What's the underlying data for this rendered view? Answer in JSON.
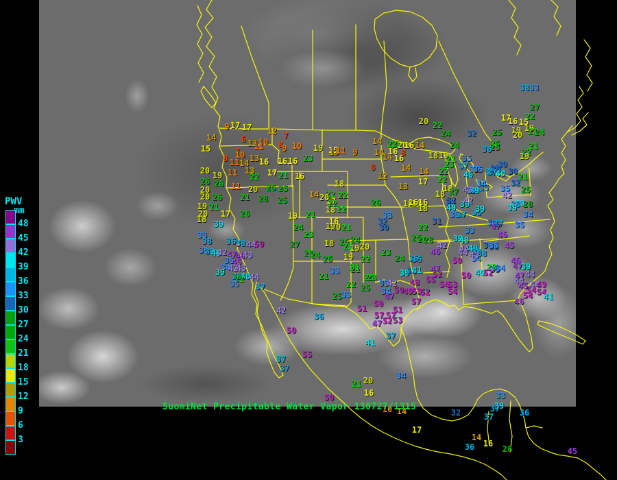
{
  "header": {
    "caption": "SuomiNet Precipitable Water Vapor 130727/1315",
    "caption_color": "#00e53c"
  },
  "legend": {
    "title": "PWV",
    "unit": "mm",
    "label_color": "#00e5ee",
    "labels": [
      "48",
      "45",
      "42",
      "39",
      "36",
      "33",
      "30",
      "27",
      "24",
      "21",
      "18",
      "15",
      "12",
      "9",
      "6",
      "3"
    ],
    "box_colors": [
      "#8B008B",
      "#9932CC",
      "#9370DB",
      "#00E5EE",
      "#00B4E8",
      "#1E90FF",
      "#1C64B8",
      "#0AA00A",
      "#00A800",
      "#12C112",
      "#B8D400",
      "#E8E800",
      "#B89B00",
      "#E88400",
      "#E85300",
      "#D31010",
      "#8B0000"
    ]
  },
  "map": {
    "border_color": "#ffff00"
  },
  "value_color_scale": [
    {
      "min": 48,
      "color": "#BB1FBB"
    },
    {
      "min": 45,
      "color": "#A43BE0"
    },
    {
      "min": 42,
      "color": "#9B7FE8"
    },
    {
      "min": 39,
      "color": "#00E5EE"
    },
    {
      "min": 36,
      "color": "#00AEE8"
    },
    {
      "min": 33,
      "color": "#2E8FFF"
    },
    {
      "min": 30,
      "color": "#1E6CD0"
    },
    {
      "min": 27,
      "color": "#0CA80C"
    },
    {
      "min": 24,
      "color": "#00BE00"
    },
    {
      "min": 21,
      "color": "#00D800"
    },
    {
      "min": 18,
      "color": "#D2DE00"
    },
    {
      "min": 15,
      "color": "#EDED00"
    },
    {
      "min": 12,
      "color": "#D49A00"
    },
    {
      "min": 9,
      "color": "#F07800"
    },
    {
      "min": 6,
      "color": "#F04800"
    },
    {
      "min": 0,
      "color": "#DC1414"
    }
  ],
  "stations": [
    [
      331,
      185,
      9
    ],
    [
      343,
      183,
      17
    ],
    [
      360,
      186,
      17
    ],
    [
      397,
      191,
      12
    ],
    [
      308,
      201,
      14
    ],
    [
      355,
      203,
      6
    ],
    [
      417,
      198,
      7
    ],
    [
      300,
      217,
      15
    ],
    [
      368,
      209,
      13
    ],
    [
      384,
      207,
      10
    ],
    [
      377,
      213,
      11
    ],
    [
      409,
      211,
      8
    ],
    [
      415,
      216,
      9
    ],
    [
      433,
      213,
      10
    ],
    [
      464,
      216,
      19
    ],
    [
      486,
      219,
      15
    ],
    [
      346,
      221,
      7
    ],
    [
      350,
      226,
      10
    ],
    [
      329,
      231,
      8
    ],
    [
      371,
      231,
      13
    ],
    [
      342,
      237,
      11
    ],
    [
      356,
      238,
      14
    ],
    [
      385,
      236,
      16
    ],
    [
      412,
      235,
      16
    ],
    [
      427,
      235,
      16
    ],
    [
      449,
      231,
      23
    ],
    [
      299,
      249,
      20
    ],
    [
      317,
      256,
      19
    ],
    [
      339,
      252,
      11
    ],
    [
      364,
      249,
      13
    ],
    [
      397,
      252,
      17
    ],
    [
      371,
      258,
      22
    ],
    [
      413,
      256,
      21
    ],
    [
      437,
      257,
      16
    ],
    [
      299,
      265,
      26
    ],
    [
      319,
      268,
      26
    ],
    [
      299,
      277,
      20
    ],
    [
      344,
      272,
      11
    ],
    [
      369,
      276,
      20
    ],
    [
      395,
      274,
      25
    ],
    [
      413,
      275,
      25
    ],
    [
      299,
      287,
      20
    ],
    [
      317,
      288,
      26
    ],
    [
      357,
      288,
      21
    ],
    [
      384,
      290,
      28
    ],
    [
      412,
      292,
      25
    ],
    [
      295,
      301,
      19
    ],
    [
      312,
      302,
      21
    ],
    [
      296,
      312,
      20
    ],
    [
      329,
      312,
      17
    ],
    [
      357,
      312,
      26
    ],
    [
      294,
      320,
      18
    ],
    [
      319,
      327,
      39
    ],
    [
      295,
      343,
      33
    ],
    [
      302,
      352,
      38
    ],
    [
      337,
      352,
      36
    ],
    [
      351,
      355,
      38
    ],
    [
      366,
      357,
      44
    ],
    [
      378,
      356,
      50
    ],
    [
      297,
      365,
      35
    ],
    [
      306,
      367,
      38
    ],
    [
      315,
      369,
      40
    ],
    [
      324,
      368,
      42
    ],
    [
      338,
      371,
      47
    ],
    [
      350,
      373,
      46
    ],
    [
      361,
      372,
      43
    ],
    [
      334,
      380,
      35
    ],
    [
      345,
      382,
      45
    ],
    [
      329,
      390,
      34
    ],
    [
      340,
      391,
      42
    ],
    [
      352,
      391,
      43
    ],
    [
      321,
      397,
      39
    ],
    [
      345,
      403,
      38
    ],
    [
      358,
      403,
      40
    ],
    [
      371,
      404,
      44
    ],
    [
      349,
      407,
      22
    ],
    [
      342,
      414,
      35
    ],
    [
      380,
      418,
      37
    ],
    [
      458,
      284,
      14
    ],
    [
      482,
      283,
      22
    ],
    [
      483,
      293,
      17
    ],
    [
      427,
      315,
      19
    ],
    [
      453,
      313,
      21
    ],
    [
      482,
      306,
      18
    ],
    [
      498,
      305,
      22
    ],
    [
      487,
      323,
      16
    ],
    [
      490,
      331,
      20
    ],
    [
      505,
      332,
      21
    ],
    [
      482,
      330,
      19
    ],
    [
      548,
      296,
      26
    ],
    [
      565,
      314,
      33
    ],
    [
      558,
      323,
      32
    ],
    [
      560,
      332,
      30
    ],
    [
      435,
      332,
      24
    ],
    [
      450,
      342,
      23
    ],
    [
      430,
      357,
      27
    ],
    [
      480,
      355,
      18
    ],
    [
      502,
      353,
      25
    ],
    [
      518,
      350,
      24
    ],
    [
      507,
      360,
      21
    ],
    [
      517,
      362,
      19
    ],
    [
      532,
      360,
      20
    ],
    [
      508,
      375,
      19
    ],
    [
      450,
      370,
      25
    ],
    [
      460,
      372,
      24
    ],
    [
      478,
      378,
      25
    ],
    [
      533,
      378,
      22
    ],
    [
      563,
      368,
      23
    ],
    [
      583,
      377,
      24
    ],
    [
      488,
      395,
      33
    ],
    [
      472,
      403,
      21
    ],
    [
      517,
      390,
      21
    ],
    [
      538,
      405,
      23
    ],
    [
      608,
      378,
      36
    ],
    [
      487,
      222,
      13
    ],
    [
      497,
      220,
      11
    ],
    [
      518,
      222,
      9
    ],
    [
      550,
      206,
      14
    ],
    [
      553,
      222,
      14
    ],
    [
      565,
      229,
      14
    ],
    [
      582,
      231,
      16
    ],
    [
      578,
      211,
      22
    ],
    [
      544,
      244,
      8
    ],
    [
      558,
      257,
      12
    ],
    [
      495,
      268,
      18
    ],
    [
      500,
      285,
      22
    ],
    [
      485,
      297,
      22
    ],
    [
      473,
      288,
      20
    ],
    [
      592,
      245,
      14
    ],
    [
      588,
      272,
      13
    ],
    [
      618,
      177,
      20
    ],
    [
      638,
      183,
      22
    ],
    [
      650,
      195,
      24
    ],
    [
      688,
      195,
      32
    ],
    [
      663,
      212,
      24
    ],
    [
      722,
      210,
      25
    ],
    [
      572,
      210,
      22
    ],
    [
      587,
      212,
      20
    ],
    [
      597,
      212,
      16
    ],
    [
      612,
      212,
      14
    ],
    [
      573,
      221,
      16
    ],
    [
      588,
      223,
      8
    ],
    [
      632,
      227,
      18
    ],
    [
      647,
      227,
      19
    ],
    [
      658,
      232,
      21
    ],
    [
      681,
      231,
      35
    ],
    [
      655,
      240,
      23
    ],
    [
      676,
      242,
      37
    ],
    [
      683,
      255,
      40
    ],
    [
      692,
      247,
      35
    ],
    [
      702,
      267,
      34
    ],
    [
      617,
      265,
      17
    ],
    [
      618,
      250,
      14
    ],
    [
      647,
      250,
      22
    ],
    [
      645,
      262,
      22
    ],
    [
      653,
      275,
      18
    ],
    [
      662,
      280,
      27
    ],
    [
      642,
      283,
      18
    ],
    [
      687,
      278,
      33
    ],
    [
      692,
      278,
      39
    ],
    [
      682,
      277,
      43
    ],
    [
      657,
      295,
      30
    ],
    [
      683,
      293,
      42
    ],
    [
      658,
      303,
      40
    ],
    [
      715,
      250,
      37
    ],
    [
      722,
      245,
      30
    ],
    [
      595,
      297,
      18
    ],
    [
      607,
      297,
      18
    ],
    [
      617,
      295,
      16
    ],
    [
      603,
      295,
      16
    ],
    [
      617,
      304,
      18
    ],
    [
      678,
      298,
      39
    ],
    [
      663,
      313,
      35
    ],
    [
      673,
      313,
      37
    ],
    [
      695,
      310,
      36
    ],
    [
      700,
      305,
      39
    ],
    [
      637,
      323,
      31
    ],
    [
      617,
      332,
      22
    ],
    [
      607,
      347,
      25
    ],
    [
      616,
      349,
      26
    ],
    [
      625,
      350,
      28
    ],
    [
      685,
      336,
      33
    ],
    [
      718,
      325,
      30
    ],
    [
      727,
      326,
      37
    ],
    [
      723,
      330,
      47
    ],
    [
      668,
      348,
      39
    ],
    [
      677,
      350,
      40
    ],
    [
      645,
      358,
      42
    ],
    [
      635,
      367,
      46
    ],
    [
      677,
      363,
      44
    ],
    [
      675,
      368,
      44
    ],
    [
      690,
      362,
      40
    ],
    [
      695,
      367,
      38
    ],
    [
      712,
      358,
      30
    ],
    [
      720,
      360,
      35
    ],
    [
      743,
      358,
      45
    ],
    [
      603,
      377,
      36
    ],
    [
      695,
      377,
      34
    ],
    [
      667,
      380,
      50
    ],
    [
      752,
      380,
      46
    ],
    [
      658,
      292,
      32
    ],
    [
      706,
      274,
      35
    ],
    [
      738,
      172,
      17
    ],
    [
      773,
      170,
      22
    ],
    [
      748,
      177,
      16
    ],
    [
      764,
      178,
      15
    ],
    [
      753,
      190,
      19
    ],
    [
      755,
      197,
      20
    ],
    [
      772,
      187,
      19
    ],
    [
      777,
      192,
      21
    ],
    [
      787,
      193,
      24
    ],
    [
      725,
      193,
      25
    ],
    [
      710,
      218,
      36
    ],
    [
      722,
      215,
      25
    ],
    [
      778,
      213,
      21
    ],
    [
      768,
      222,
      22
    ],
    [
      765,
      228,
      19
    ],
    [
      733,
      240,
      30
    ],
    [
      723,
      247,
      30
    ],
    [
      697,
      247,
      35
    ],
    [
      717,
      252,
      37
    ],
    [
      730,
      253,
      40
    ],
    [
      702,
      268,
      34
    ],
    [
      752,
      267,
      32
    ],
    [
      737,
      275,
      35
    ],
    [
      740,
      285,
      42
    ],
    [
      748,
      250,
      30
    ],
    [
      763,
      258,
      21
    ],
    [
      767,
      277,
      25
    ],
    [
      758,
      297,
      39
    ],
    [
      780,
      157,
      27
    ],
    [
      765,
      128,
      38
    ],
    [
      779,
      128,
      33
    ],
    [
      752,
      298,
      38
    ],
    [
      747,
      303,
      39
    ],
    [
      770,
      298,
      28
    ],
    [
      770,
      313,
      34
    ],
    [
      758,
      328,
      35
    ],
    [
      733,
      342,
      46
    ],
    [
      720,
      358,
      35
    ],
    [
      722,
      393,
      35
    ],
    [
      755,
      388,
      47
    ],
    [
      767,
      389,
      39
    ],
    [
      758,
      402,
      47
    ],
    [
      773,
      400,
      44
    ],
    [
      757,
      410,
      44
    ],
    [
      780,
      415,
      44
    ],
    [
      790,
      415,
      49
    ],
    [
      775,
      423,
      54
    ],
    [
      790,
      426,
      54
    ],
    [
      770,
      431,
      54
    ],
    [
      763,
      417,
      45
    ],
    [
      717,
      390,
      23
    ],
    [
      730,
      391,
      34
    ],
    [
      800,
      433,
      41
    ],
    [
      692,
      372,
      43
    ],
    [
      703,
      370,
      38
    ],
    [
      757,
      440,
      46
    ],
    [
      590,
      398,
      39
    ],
    [
      600,
      395,
      31
    ],
    [
      608,
      394,
      41
    ],
    [
      635,
      392,
      47
    ],
    [
      638,
      400,
      52
    ],
    [
      628,
      408,
      55
    ],
    [
      648,
      415,
      54
    ],
    [
      660,
      415,
      53
    ],
    [
      605,
      412,
      48
    ],
    [
      595,
      425,
      49
    ],
    [
      608,
      425,
      53
    ],
    [
      620,
      426,
      52
    ],
    [
      660,
      425,
      54
    ],
    [
      680,
      402,
      50
    ],
    [
      700,
      398,
      40
    ],
    [
      712,
      398,
      52
    ],
    [
      607,
      440,
      57
    ],
    [
      518,
      393,
      21
    ],
    [
      542,
      405,
      23
    ],
    [
      512,
      415,
      22
    ],
    [
      533,
      420,
      25
    ],
    [
      492,
      432,
      25
    ],
    [
      505,
      430,
      33
    ],
    [
      560,
      413,
      33
    ],
    [
      572,
      413,
      42
    ],
    [
      563,
      425,
      34
    ],
    [
      582,
      423,
      50
    ],
    [
      568,
      432,
      47
    ],
    [
      528,
      450,
      51
    ],
    [
      552,
      443,
      50
    ],
    [
      580,
      452,
      51
    ],
    [
      553,
      460,
      57
    ],
    [
      570,
      460,
      57
    ],
    [
      580,
      467,
      53
    ],
    [
      565,
      468,
      52
    ],
    [
      550,
      472,
      47
    ],
    [
      570,
      490,
      37
    ],
    [
      540,
      500,
      41
    ],
    [
      410,
      453,
      42
    ],
    [
      465,
      462,
      36
    ],
    [
      425,
      482,
      50
    ],
    [
      448,
      517,
      55
    ],
    [
      410,
      524,
      37
    ],
    [
      415,
      537,
      37
    ],
    [
      585,
      548,
      34
    ],
    [
      520,
      560,
      21
    ],
    [
      537,
      555,
      20
    ],
    [
      538,
      573,
      16
    ],
    [
      480,
      580,
      50
    ],
    [
      565,
      597,
      10
    ],
    [
      586,
      600,
      14
    ],
    [
      730,
      577,
      33
    ],
    [
      728,
      592,
      39
    ],
    [
      722,
      596,
      37
    ],
    [
      665,
      602,
      32
    ],
    [
      713,
      608,
      37
    ],
    [
      765,
      602,
      36
    ],
    [
      608,
      627,
      17
    ],
    [
      695,
      638,
      14
    ],
    [
      712,
      647,
      16
    ],
    [
      685,
      652,
      36
    ],
    [
      740,
      655,
      26
    ],
    [
      835,
      658,
      45
    ]
  ]
}
